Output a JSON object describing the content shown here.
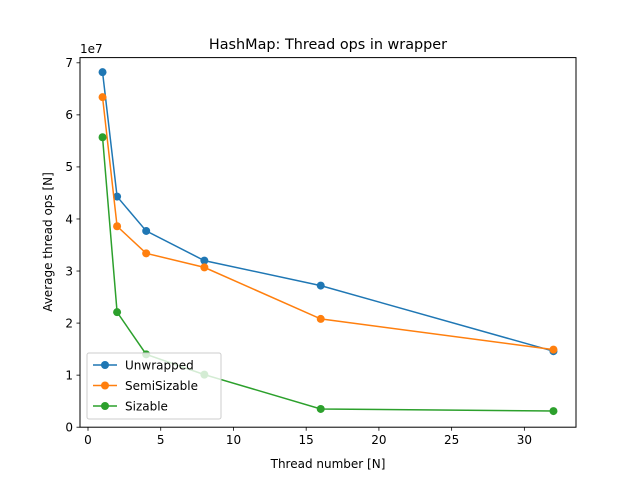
{
  "chart_data": {
    "type": "line",
    "title": "HashMap: Thread ops in wrapper",
    "xlabel": "Thread number [N]",
    "ylabel": "Average thread ops [N]",
    "y_offset_label": "1e7",
    "xlim": [
      -0.55,
      33.55
    ],
    "ylim": [
      0,
      71000000
    ],
    "x_ticks": [
      0,
      5,
      10,
      15,
      20,
      25,
      30
    ],
    "x_tick_labels": [
      "0",
      "5",
      "10",
      "15",
      "20",
      "25",
      "30"
    ],
    "y_ticks": [
      0,
      10000000,
      20000000,
      30000000,
      40000000,
      50000000,
      60000000,
      70000000
    ],
    "y_tick_labels": [
      "0",
      "1",
      "2",
      "3",
      "4",
      "5",
      "6",
      "7"
    ],
    "grid": false,
    "legend_position": "lower-left",
    "x": [
      1,
      2,
      4,
      8,
      16,
      32
    ],
    "series": [
      {
        "name": "Unwrapped",
        "color": "#1f77b4",
        "marker": "circle",
        "values": [
          68200000,
          44300000,
          37700000,
          32000000,
          27200000,
          14600000
        ]
      },
      {
        "name": "SemiSizable",
        "color": "#ff7f0e",
        "marker": "circle",
        "values": [
          63400000,
          38600000,
          33400000,
          30700000,
          20800000,
          14900000
        ]
      },
      {
        "name": "Sizable",
        "color": "#2ca02c",
        "marker": "circle",
        "values": [
          55700000,
          22100000,
          14000000,
          10100000,
          3500000,
          3100000
        ]
      }
    ]
  }
}
